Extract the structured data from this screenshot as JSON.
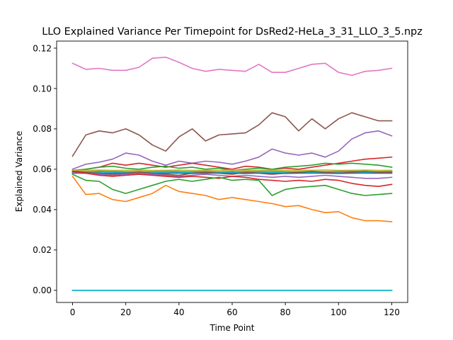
{
  "chart_data": {
    "type": "line",
    "title": "LLO Explained Variance Per Timepoint for DsRed2-HeLa_3_31_LLO_3_5.npz",
    "xlabel": "Time Point",
    "ylabel": "Explained Variance",
    "xlim": [
      -6,
      126
    ],
    "ylim": [
      -0.006,
      0.1235
    ],
    "x_ticks": [
      0,
      20,
      40,
      60,
      80,
      100,
      120
    ],
    "y_ticks": [
      0.0,
      0.02,
      0.04,
      0.06,
      0.08,
      0.1,
      0.12
    ],
    "x_tick_labels": [
      "0",
      "20",
      "40",
      "60",
      "80",
      "100",
      "120"
    ],
    "y_tick_labels": [
      "0.00",
      "0.02",
      "0.04",
      "0.06",
      "0.08",
      "0.10",
      "0.12"
    ],
    "grid": false,
    "x": [
      0,
      5,
      10,
      15,
      20,
      25,
      30,
      35,
      40,
      45,
      50,
      55,
      60,
      65,
      70,
      75,
      80,
      85,
      90,
      95,
      100,
      105,
      110,
      115,
      120
    ],
    "series": [
      {
        "color": "#e377c2",
        "values": [
          0.1125,
          0.1095,
          0.11,
          0.109,
          0.109,
          0.1105,
          0.115,
          0.1155,
          0.113,
          0.11,
          0.1085,
          0.1095,
          0.109,
          0.1085,
          0.112,
          0.108,
          0.108,
          0.11,
          0.112,
          0.1125,
          0.108,
          0.1065,
          0.1085,
          0.109,
          0.11
        ]
      },
      {
        "color": "#8c564b",
        "values": [
          0.0665,
          0.077,
          0.079,
          0.078,
          0.08,
          0.077,
          0.072,
          0.069,
          0.076,
          0.08,
          0.074,
          0.077,
          0.0775,
          0.078,
          0.082,
          0.088,
          0.086,
          0.079,
          0.085,
          0.08,
          0.085,
          0.088,
          0.086,
          0.084,
          0.084
        ]
      },
      {
        "color": "#9467bd",
        "values": [
          0.06,
          0.0625,
          0.0635,
          0.065,
          0.068,
          0.067,
          0.064,
          0.062,
          0.064,
          0.063,
          0.064,
          0.0635,
          0.0625,
          0.064,
          0.066,
          0.07,
          0.068,
          0.067,
          0.068,
          0.066,
          0.069,
          0.075,
          0.078,
          0.079,
          0.0765
        ]
      },
      {
        "color": "#d62728",
        "values": [
          0.059,
          0.06,
          0.061,
          0.063,
          0.062,
          0.063,
          0.062,
          0.061,
          0.062,
          0.063,
          0.062,
          0.061,
          0.06,
          0.0615,
          0.061,
          0.06,
          0.0605,
          0.06,
          0.061,
          0.062,
          0.063,
          0.064,
          0.065,
          0.0655,
          0.066
        ]
      },
      {
        "color": "#2ca02c",
        "values": [
          0.0595,
          0.06,
          0.061,
          0.0615,
          0.0605,
          0.06,
          0.061,
          0.0615,
          0.0605,
          0.061,
          0.06,
          0.0605,
          0.0595,
          0.06,
          0.0605,
          0.06,
          0.061,
          0.0615,
          0.062,
          0.063,
          0.0625,
          0.063,
          0.0625,
          0.062,
          0.061
        ]
      },
      {
        "color": "#bcbd22",
        "values": [
          0.0595,
          0.0595,
          0.0596,
          0.0594,
          0.0595,
          0.0596,
          0.0594,
          0.0595,
          0.0596,
          0.0594,
          0.0595,
          0.0595,
          0.0596,
          0.0594,
          0.0595,
          0.0596,
          0.0594,
          0.0595,
          0.0595,
          0.0596,
          0.0594,
          0.0595,
          0.0596,
          0.0594,
          0.0595
        ]
      },
      {
        "color": "#7f7f7f",
        "values": [
          0.059,
          0.0588,
          0.059,
          0.0589,
          0.0587,
          0.0589,
          0.0588,
          0.059,
          0.0589,
          0.0588,
          0.0589,
          0.0587,
          0.0589,
          0.0588,
          0.0589,
          0.059,
          0.0588,
          0.0587,
          0.0589,
          0.0588,
          0.0589,
          0.059,
          0.0589,
          0.0588,
          0.0589
        ]
      },
      {
        "color": "#17becf",
        "values": [
          0.0585,
          0.0584,
          0.0585,
          0.0583,
          0.0584,
          0.0585,
          0.0584,
          0.0583,
          0.0585,
          0.0584,
          0.0583,
          0.0585,
          0.0584,
          0.0585,
          0.0584,
          0.0583,
          0.0585,
          0.0584,
          0.0583,
          0.0585,
          0.0584,
          0.0585,
          0.0584,
          0.0583,
          0.0584
        ]
      },
      {
        "color": "#1f77b4",
        "values": [
          0.058,
          0.0581,
          0.0579,
          0.058,
          0.0581,
          0.058,
          0.0579,
          0.0581,
          0.058,
          0.0579,
          0.058,
          0.0581,
          0.058,
          0.0579,
          0.0581,
          0.058,
          0.0579,
          0.058,
          0.0581,
          0.058,
          0.0579,
          0.058,
          0.0581,
          0.058,
          0.058
        ]
      },
      {
        "color": "#8c564b",
        "values": [
          0.059,
          0.0585,
          0.058,
          0.0575,
          0.058,
          0.0585,
          0.058,
          0.0575,
          0.057,
          0.058,
          0.0585,
          0.058,
          0.0575,
          0.0585,
          0.058,
          0.0575,
          0.058,
          0.0585,
          0.059,
          0.0585,
          0.058,
          0.0585,
          0.059,
          0.0585,
          0.0585
        ]
      },
      {
        "color": "#9467bd",
        "values": [
          0.0585,
          0.058,
          0.0575,
          0.057,
          0.0575,
          0.058,
          0.0575,
          0.057,
          0.0565,
          0.057,
          0.0575,
          0.057,
          0.0565,
          0.057,
          0.0565,
          0.056,
          0.0565,
          0.056,
          0.0565,
          0.057,
          0.0565,
          0.056,
          0.0555,
          0.0555,
          0.056
        ]
      },
      {
        "color": "#d62728",
        "values": [
          0.059,
          0.058,
          0.057,
          0.0565,
          0.057,
          0.0575,
          0.057,
          0.0565,
          0.056,
          0.0565,
          0.056,
          0.0555,
          0.0565,
          0.056,
          0.055,
          0.0545,
          0.054,
          0.0545,
          0.054,
          0.055,
          0.0545,
          0.053,
          0.052,
          0.0515,
          0.0525
        ]
      },
      {
        "color": "#2ca02c",
        "values": [
          0.0575,
          0.0545,
          0.054,
          0.05,
          0.048,
          0.05,
          0.052,
          0.054,
          0.055,
          0.054,
          0.055,
          0.056,
          0.0545,
          0.055,
          0.0545,
          0.047,
          0.05,
          0.051,
          0.0515,
          0.052,
          0.05,
          0.048,
          0.047,
          0.0475,
          0.048
        ]
      },
      {
        "color": "#ff7f0e",
        "values": [
          0.0565,
          0.0475,
          0.048,
          0.045,
          0.044,
          0.046,
          0.048,
          0.052,
          0.049,
          0.048,
          0.047,
          0.045,
          0.046,
          0.045,
          0.044,
          0.043,
          0.0415,
          0.042,
          0.04,
          0.0385,
          0.039,
          0.036,
          0.0345,
          0.0345,
          0.034
        ]
      },
      {
        "color": "#1f77b4",
        "values": [
          0.0,
          0.0,
          0.0,
          0.0,
          0.0,
          0.0,
          0.0,
          0.0,
          0.0,
          0.0,
          0.0,
          0.0,
          0.0,
          0.0,
          0.0,
          0.0,
          0.0,
          0.0,
          0.0,
          0.0,
          0.0,
          0.0,
          0.0,
          0.0,
          0.0
        ]
      },
      {
        "color": "#17becf",
        "values": [
          0.0,
          0.0,
          0.0,
          0.0,
          0.0,
          0.0,
          0.0,
          0.0,
          0.0,
          0.0,
          0.0,
          0.0,
          0.0,
          0.0,
          0.0,
          0.0,
          0.0,
          0.0,
          0.0,
          0.0,
          0.0,
          0.0,
          0.0,
          0.0,
          0.0
        ]
      }
    ]
  }
}
